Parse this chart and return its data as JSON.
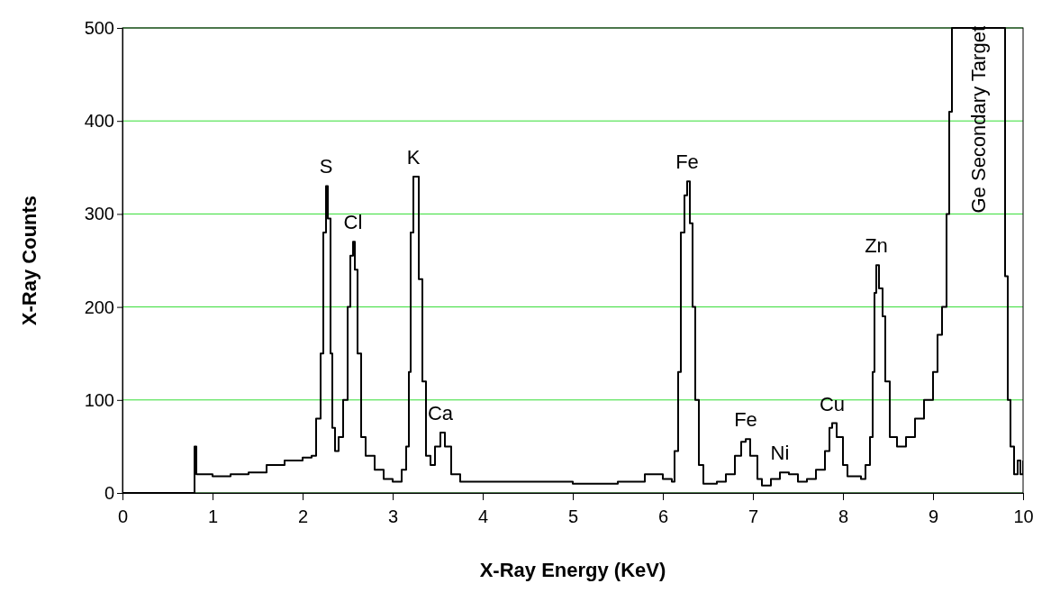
{
  "chart_data": {
    "type": "step",
    "xlabel": "X-Ray Energy (KeV)",
    "ylabel": "X-Ray Counts",
    "xlim": [
      0,
      10
    ],
    "xticks": [
      0,
      1,
      2,
      3,
      4,
      5,
      6,
      7,
      8,
      9,
      10
    ],
    "ylim": [
      0,
      500
    ],
    "yticks": [
      0,
      100,
      200,
      300,
      400,
      500
    ],
    "grid": "y",
    "x": [
      0,
      0.78,
      0.8,
      0.82,
      1.0,
      1.2,
      1.4,
      1.6,
      1.8,
      2.0,
      2.1,
      2.15,
      2.2,
      2.23,
      2.26,
      2.28,
      2.31,
      2.33,
      2.36,
      2.4,
      2.45,
      2.5,
      2.53,
      2.56,
      2.58,
      2.61,
      2.65,
      2.7,
      2.8,
      2.9,
      3.0,
      3.1,
      3.15,
      3.18,
      3.2,
      3.23,
      3.26,
      3.29,
      3.33,
      3.37,
      3.42,
      3.47,
      3.53,
      3.58,
      3.65,
      3.75,
      4.0,
      4.5,
      5.0,
      5.5,
      5.8,
      6.0,
      6.1,
      6.13,
      6.17,
      6.2,
      6.24,
      6.27,
      6.3,
      6.33,
      6.36,
      6.4,
      6.45,
      6.6,
      6.7,
      6.8,
      6.87,
      6.92,
      6.97,
      7.05,
      7.1,
      7.2,
      7.3,
      7.4,
      7.5,
      7.6,
      7.7,
      7.8,
      7.85,
      7.88,
      7.93,
      8.0,
      8.05,
      8.2,
      8.25,
      8.3,
      8.33,
      8.35,
      8.37,
      8.4,
      8.44,
      8.47,
      8.52,
      8.6,
      8.7,
      8.8,
      8.9,
      9.0,
      9.05,
      9.1,
      9.12,
      9.15,
      9.18,
      9.21,
      9.77,
      9.8,
      9.83,
      9.86,
      9.9,
      9.94,
      9.97,
      10.0
    ],
    "values": [
      0,
      0,
      50,
      20,
      18,
      20,
      22,
      30,
      35,
      38,
      40,
      80,
      150,
      280,
      330,
      295,
      150,
      70,
      45,
      60,
      100,
      200,
      255,
      270,
      240,
      150,
      60,
      40,
      25,
      15,
      12,
      25,
      50,
      130,
      280,
      340,
      340,
      230,
      120,
      40,
      30,
      50,
      65,
      50,
      20,
      12,
      12,
      12,
      10,
      12,
      20,
      15,
      12,
      45,
      130,
      280,
      320,
      335,
      290,
      200,
      100,
      30,
      10,
      12,
      20,
      40,
      55,
      58,
      40,
      15,
      8,
      15,
      22,
      20,
      12,
      15,
      25,
      45,
      70,
      75,
      60,
      30,
      18,
      15,
      30,
      60,
      130,
      215,
      245,
      220,
      190,
      120,
      60,
      50,
      60,
      80,
      100,
      130,
      170,
      200,
      200,
      300,
      410,
      500,
      500,
      233,
      100,
      50,
      20,
      35,
      20,
      35
    ],
    "color": "#000000",
    "annotations": [
      {
        "text": "S",
        "x": 2.26,
        "y": 330
      },
      {
        "text": "Cl",
        "x": 2.56,
        "y": 270
      },
      {
        "text": "K",
        "x": 3.23,
        "y": 340
      },
      {
        "text": "Ca",
        "x": 3.53,
        "y": 65
      },
      {
        "text": "Fe",
        "x": 6.27,
        "y": 335
      },
      {
        "text": "Fe",
        "x": 6.92,
        "y": 58
      },
      {
        "text": "Ni",
        "x": 7.3,
        "y": 22
      },
      {
        "text": "Cu",
        "x": 7.88,
        "y": 75
      },
      {
        "text": "Zn",
        "x": 8.37,
        "y": 245
      },
      {
        "text": "Ge Secondary Target",
        "x": 9.5,
        "y": 500
      }
    ]
  }
}
